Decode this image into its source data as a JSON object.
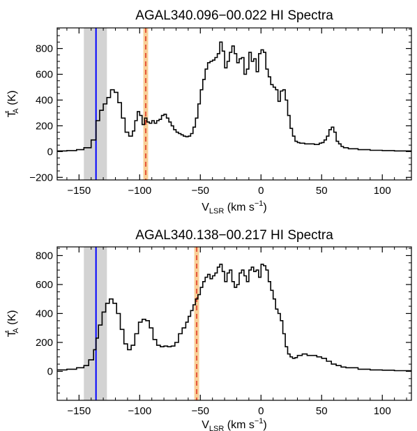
{
  "chart_data": [
    {
      "type": "line",
      "title": "AGAL340.096−00.022  HI Spectra",
      "xlabel": "V",
      "xlabel_sub": "LSR",
      "xlabel_units": " (km s",
      "xlabel_units_sup": "−1",
      "xlabel_close": ")",
      "ylabel": "T",
      "ylabel_sub": "A",
      "ylabel_sup": "*",
      "ylabel_units": " (K)",
      "xlim": [
        -168,
        124
      ],
      "ylim": [
        -220,
        960
      ],
      "xticks": [
        -150,
        -100,
        -50,
        0,
        50,
        100
      ],
      "xtick_labels": [
        "−150",
        "−100",
        "−50",
        "0",
        "50",
        "100"
      ],
      "yticks": [
        -200,
        0,
        200,
        400,
        600,
        800
      ],
      "ytick_labels": [
        "−200",
        "0",
        "200",
        "400",
        "600",
        "800"
      ],
      "grid": false,
      "shaded_band": {
        "x0": -146,
        "x1": -127,
        "color": "#d3d3d3"
      },
      "vertical_line": {
        "x": -136,
        "color": "#0000ff"
      },
      "orange_band": {
        "x0": -97,
        "x1": -93,
        "color": "#f8cf97"
      },
      "dashed_line": {
        "x": -95,
        "color": "#e0301e"
      },
      "series": [
        {
          "color": "#000000",
          "x": [
            -168,
            -160,
            -152,
            -146,
            -140,
            -136,
            -133,
            -130,
            -127,
            -124,
            -121,
            -118,
            -115,
            -112,
            -109,
            -106,
            -104,
            -102,
            -100,
            -98,
            -96,
            -94,
            -92,
            -90,
            -88,
            -86,
            -84,
            -82,
            -80,
            -78,
            -76,
            -74,
            -72,
            -70,
            -68,
            -66,
            -64,
            -62,
            -60,
            -58,
            -56,
            -54,
            -52,
            -50,
            -48,
            -46,
            -44,
            -42,
            -40,
            -38,
            -36,
            -34,
            -32,
            -30,
            -28,
            -26,
            -24,
            -22,
            -20,
            -18,
            -16,
            -14,
            -12,
            -10,
            -8,
            -6,
            -4,
            -2,
            0,
            2,
            4,
            6,
            8,
            10,
            12,
            14,
            16,
            18,
            20,
            22,
            24,
            26,
            28,
            30,
            32,
            36,
            40,
            44,
            48,
            50,
            52,
            54,
            56,
            58,
            60,
            62,
            64,
            66,
            68,
            72,
            80,
            90,
            100,
            110,
            120,
            124
          ],
          "y": [
            5,
            8,
            15,
            30,
            90,
            240,
            320,
            370,
            420,
            480,
            460,
            380,
            260,
            150,
            120,
            160,
            240,
            310,
            280,
            210,
            260,
            230,
            220,
            240,
            220,
            240,
            250,
            280,
            290,
            260,
            230,
            200,
            170,
            150,
            140,
            130,
            120,
            115,
            120,
            140,
            190,
            260,
            370,
            480,
            560,
            640,
            690,
            700,
            710,
            730,
            760,
            850,
            780,
            650,
            700,
            770,
            820,
            760,
            690,
            720,
            730,
            600,
            640,
            770,
            700,
            720,
            620,
            760,
            790,
            770,
            640,
            580,
            520,
            500,
            480,
            390,
            470,
            480,
            400,
            280,
            180,
            120,
            80,
            70,
            65,
            60,
            60,
            55,
            65,
            70,
            90,
            120,
            170,
            190,
            150,
            80,
            60,
            40,
            30,
            22,
            15,
            10,
            8,
            5,
            5,
            5
          ]
        }
      ]
    },
    {
      "type": "line",
      "title": "AGAL340.138−00.217  HI Spectra",
      "xlabel": "V",
      "xlabel_sub": "LSR",
      "xlabel_units": " (km s",
      "xlabel_units_sup": "−1",
      "xlabel_close": ")",
      "ylabel": "T",
      "ylabel_sub": "A",
      "ylabel_sup": "*",
      "ylabel_units": " (K)",
      "xlim": [
        -168,
        124
      ],
      "ylim": [
        -200,
        860
      ],
      "xticks": [
        -150,
        -100,
        -50,
        0,
        50,
        100
      ],
      "xtick_labels": [
        "−150",
        "−100",
        "−50",
        "0",
        "50",
        "100"
      ],
      "yticks": [
        0,
        200,
        400,
        600,
        800
      ],
      "ytick_labels": [
        "0",
        "200",
        "400",
        "600",
        "800"
      ],
      "grid": false,
      "shaded_band": {
        "x0": -146,
        "x1": -127,
        "color": "#d3d3d3"
      },
      "vertical_line": {
        "x": -136,
        "color": "#0000ff"
      },
      "orange_band": {
        "x0": -55,
        "x1": -51,
        "color": "#f8cf97"
      },
      "dashed_line": {
        "x": -53,
        "color": "#e0301e"
      },
      "series": [
        {
          "color": "#000000",
          "x": [
            -168,
            -160,
            -152,
            -146,
            -142,
            -138,
            -136,
            -134,
            -131,
            -128,
            -125,
            -122,
            -119,
            -116,
            -113,
            -110,
            -107,
            -104,
            -101,
            -98,
            -95,
            -92,
            -89,
            -86,
            -83,
            -80,
            -77,
            -74,
            -71,
            -68,
            -65,
            -62,
            -60,
            -58,
            -56,
            -54,
            -52,
            -50,
            -48,
            -46,
            -44,
            -42,
            -40,
            -38,
            -36,
            -34,
            -32,
            -30,
            -28,
            -26,
            -24,
            -22,
            -20,
            -18,
            -16,
            -14,
            -12,
            -10,
            -8,
            -6,
            -4,
            -2,
            0,
            2,
            4,
            6,
            8,
            10,
            12,
            14,
            16,
            18,
            20,
            22,
            24,
            26,
            28,
            30,
            34,
            38,
            42,
            46,
            50,
            54,
            58,
            62,
            66,
            70,
            80,
            90,
            100,
            110,
            120,
            124
          ],
          "y": [
            10,
            15,
            25,
            40,
            80,
            150,
            230,
            320,
            410,
            470,
            500,
            470,
            400,
            290,
            190,
            150,
            180,
            260,
            340,
            360,
            350,
            300,
            220,
            180,
            170,
            175,
            170,
            175,
            200,
            260,
            300,
            340,
            380,
            420,
            460,
            500,
            530,
            580,
            620,
            650,
            670,
            640,
            660,
            680,
            720,
            740,
            690,
            620,
            680,
            700,
            620,
            580,
            600,
            680,
            700,
            660,
            620,
            700,
            720,
            690,
            700,
            650,
            740,
            730,
            700,
            620,
            560,
            500,
            430,
            400,
            350,
            260,
            170,
            120,
            100,
            90,
            95,
            110,
            120,
            110,
            110,
            100,
            90,
            70,
            50,
            40,
            30,
            25,
            15,
            10,
            8,
            5,
            5,
            5
          ]
        }
      ]
    }
  ]
}
